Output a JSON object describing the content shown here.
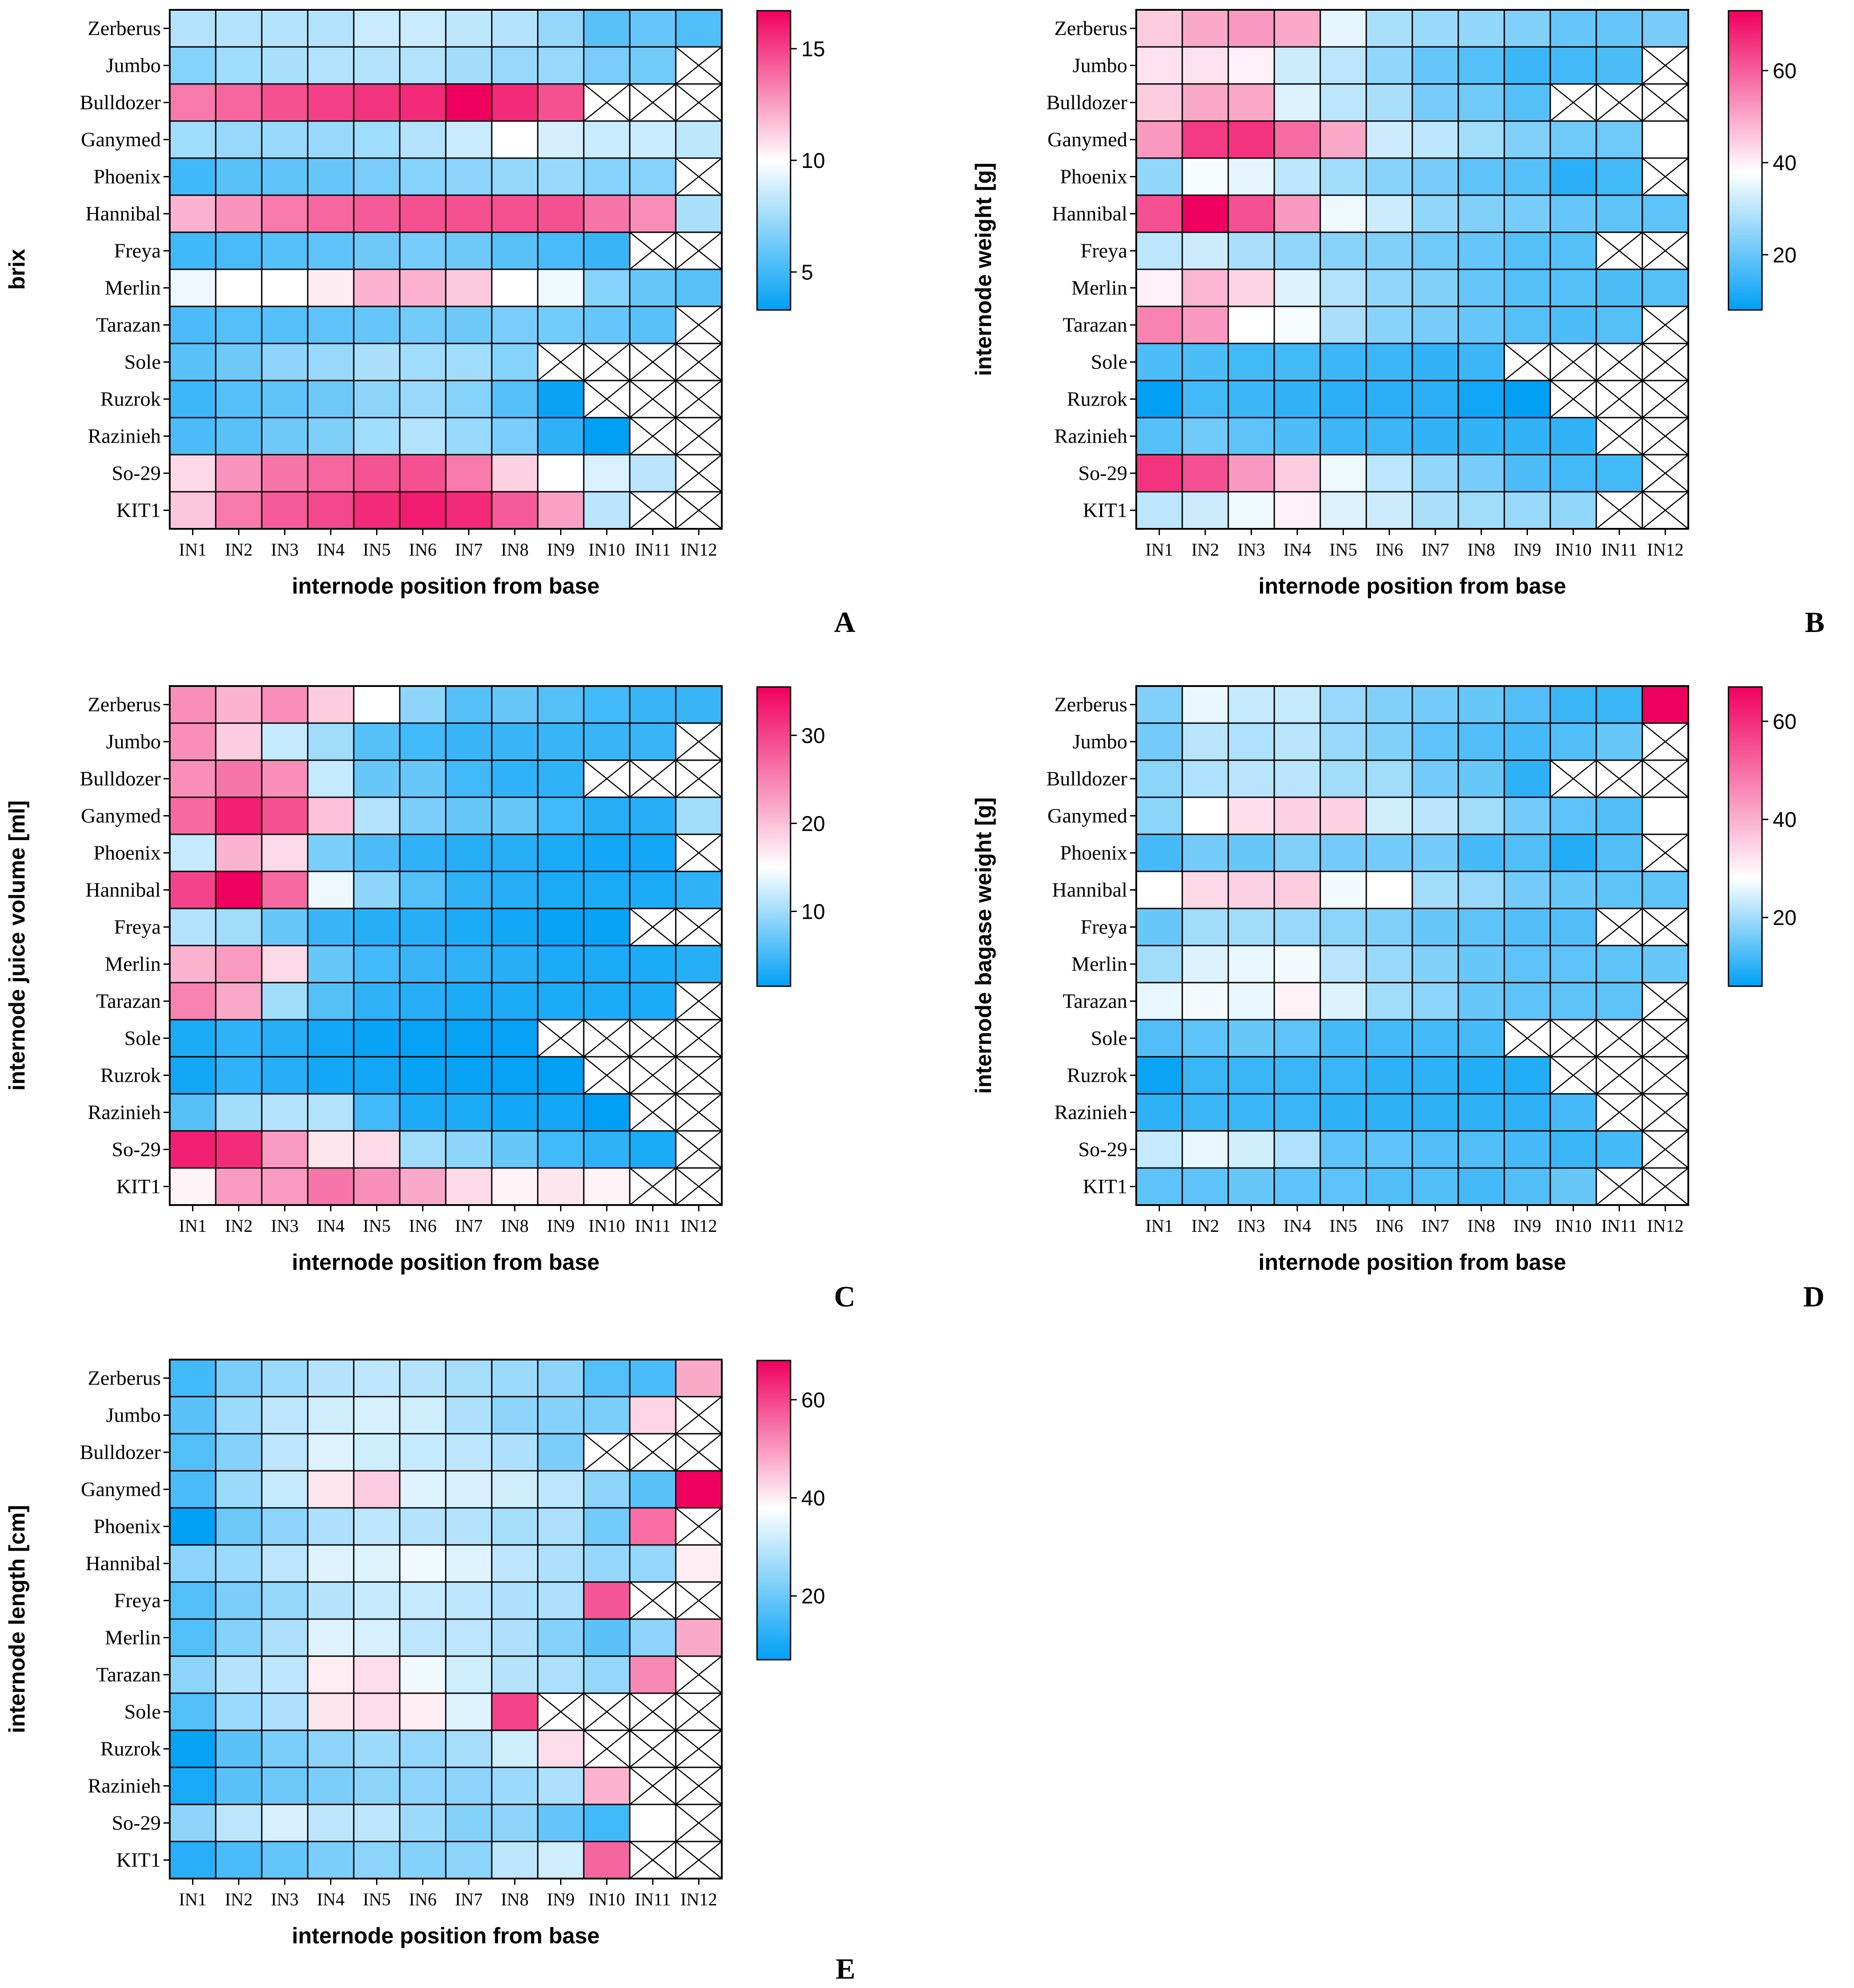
{
  "figure": {
    "rows": [
      "Zerberus",
      "Jumbo",
      "Bulldozer",
      "Ganymed",
      "Phoenix",
      "Hannibal",
      "Freya",
      "Merlin",
      "Tarazan",
      "Sole",
      "Ruzrok",
      "Razinieh",
      "So-29",
      "KIT1"
    ],
    "columns": [
      "IN1",
      "IN2",
      "IN3",
      "IN4",
      "IN5",
      "IN6",
      "IN7",
      "IN8",
      "IN9",
      "IN10",
      "IN11",
      "IN12"
    ],
    "colors": {
      "low": "#00a0f5",
      "mid": "#ffffff",
      "high": "#f0005e",
      "grid": "#000000",
      "missing_fill": "#ffffff"
    }
  },
  "chart_data": [
    {
      "type": "heatmap",
      "panel": "A",
      "title": "",
      "xlabel": "internode position from base",
      "ylabel": "brix",
      "colorbar": {
        "min": 3.3,
        "mid": 10,
        "max": 16.7,
        "ticks": [
          5,
          10,
          15
        ]
      },
      "values": [
        [
          8,
          8,
          8,
          8,
          8.6,
          8.6,
          8.3,
          8,
          7.2,
          5.6,
          6,
          5.4
        ],
        [
          6.8,
          7.5,
          7.8,
          8,
          8,
          8,
          7.6,
          7.3,
          7.3,
          6.5,
          6.3,
          null
        ],
        [
          13.5,
          14,
          14.6,
          15,
          15.3,
          15.6,
          16.7,
          15.6,
          14.6,
          null,
          null,
          null
        ],
        [
          7.5,
          7.3,
          7.3,
          7.3,
          7.5,
          8,
          8.6,
          10,
          8.9,
          8.6,
          8.6,
          8.3
        ],
        [
          5,
          5.6,
          5.8,
          6,
          6.5,
          6.8,
          7,
          7.2,
          7.3,
          6.8,
          6.8,
          null
        ],
        [
          12,
          12.8,
          13.5,
          14,
          14.3,
          14.6,
          14.6,
          14.6,
          14.6,
          13.6,
          13,
          7.8
        ],
        [
          5,
          5.2,
          5.5,
          5.8,
          6.2,
          6.4,
          6.2,
          5.6,
          5.2,
          4.8,
          null,
          null
        ],
        [
          9.5,
          10,
          10,
          10.5,
          12,
          12,
          11.4,
          10,
          9.6,
          6.8,
          6,
          5.6
        ],
        [
          5.3,
          5.5,
          5.5,
          5.8,
          6,
          6.3,
          6.2,
          6.5,
          6.3,
          6,
          5.6,
          null
        ],
        [
          5.6,
          6.2,
          7,
          7.3,
          7.8,
          7.5,
          7.5,
          6.8,
          null,
          null,
          null,
          null
        ],
        [
          4.9,
          5.5,
          5.8,
          6.2,
          7,
          7.3,
          6.8,
          5.5,
          3.6,
          null,
          null,
          null
        ],
        [
          5.3,
          5.6,
          6.2,
          6.6,
          7.5,
          8,
          7.3,
          6.5,
          4.5,
          3.3,
          null,
          null
        ],
        [
          11,
          12.8,
          13.6,
          14,
          14.5,
          14.6,
          13.5,
          11.2,
          10,
          9,
          8.2,
          null
        ],
        [
          11.5,
          13.5,
          14.3,
          14.8,
          15.6,
          16,
          15.6,
          14.3,
          12.5,
          8.2,
          null,
          null
        ]
      ]
    },
    {
      "type": "heatmap",
      "panel": "B",
      "title": "",
      "xlabel": "internode position from base",
      "ylabel": "internode weight [g]",
      "colorbar": {
        "min": 8,
        "mid": 38,
        "max": 73,
        "ticks": [
          20,
          40,
          60
        ]
      },
      "values": [
        [
          45,
          50,
          52,
          50,
          35,
          28,
          26,
          25,
          23,
          20,
          20,
          22
        ],
        [
          42,
          42,
          40,
          32,
          30,
          25,
          20,
          18,
          15,
          16,
          17,
          null
        ],
        [
          45,
          50,
          50,
          34,
          30,
          28,
          22,
          21,
          18,
          null,
          null,
          null
        ],
        [
          52,
          65,
          66,
          58,
          50,
          32,
          30,
          27,
          23,
          21,
          21,
          38
        ],
        [
          25,
          37,
          35,
          30,
          27,
          24,
          22,
          19,
          18,
          13,
          16,
          null
        ],
        [
          62,
          73,
          62,
          52,
          36,
          32,
          25,
          23,
          22,
          20,
          19,
          19
        ],
        [
          30,
          32,
          28,
          25,
          24,
          23,
          21,
          20,
          18,
          18,
          null,
          null
        ],
        [
          40,
          48,
          44,
          34,
          29,
          25,
          23,
          20,
          18,
          18,
          17,
          18
        ],
        [
          55,
          52,
          38,
          37,
          28,
          24,
          22,
          20,
          18,
          17,
          18,
          null
        ],
        [
          17,
          17,
          16,
          16,
          15,
          15,
          14,
          15,
          null,
          null,
          null,
          null
        ],
        [
          8,
          16,
          15,
          14,
          13,
          13,
          13,
          10,
          8,
          null,
          null,
          null
        ],
        [
          18,
          21,
          19,
          17,
          15,
          15,
          14,
          14,
          14,
          14,
          null,
          null
        ],
        [
          66,
          62,
          52,
          45,
          36,
          30,
          25,
          22,
          17,
          16,
          16,
          null
        ],
        [
          30,
          32,
          36,
          40,
          34,
          32,
          28,
          27,
          26,
          25,
          null,
          null
        ]
      ]
    },
    {
      "type": "heatmap",
      "panel": "C",
      "title": "",
      "xlabel": "internode position from base",
      "ylabel": "internode juice volume [ml]",
      "colorbar": {
        "min": 1.5,
        "mid": 15,
        "max": 35.5,
        "ticks": [
          10,
          20,
          30
        ]
      },
      "values": [
        [
          24,
          21,
          24,
          19,
          15,
          9,
          6,
          7,
          6,
          5,
          4.5,
          4.5
        ],
        [
          24,
          19,
          12,
          10,
          6,
          5,
          4.5,
          4.5,
          4.5,
          4.5,
          4.5,
          null
        ],
        [
          24,
          26,
          24,
          12,
          7,
          7,
          5,
          4,
          4,
          null,
          null,
          null
        ],
        [
          27,
          33,
          29,
          20,
          11,
          8,
          7,
          7,
          5,
          3.5,
          3.5,
          10
        ],
        [
          12,
          21,
          18,
          8,
          5.5,
          4,
          3.5,
          3.5,
          3,
          2.5,
          2.5,
          null
        ],
        [
          30,
          35.5,
          27,
          14,
          9,
          6,
          4,
          3.5,
          3,
          3,
          3,
          4
        ],
        [
          11,
          10,
          7,
          4.5,
          3.5,
          3.5,
          3,
          2.5,
          2,
          2,
          null,
          null
        ],
        [
          21,
          23,
          18,
          7,
          5,
          4.5,
          4,
          3.5,
          3,
          3,
          3,
          3.5
        ],
        [
          25,
          22,
          10,
          6,
          4,
          3.5,
          3,
          3,
          3,
          3,
          3,
          null
        ],
        [
          3,
          4,
          3.5,
          2.5,
          2,
          1.8,
          1.8,
          1.8,
          null,
          null,
          null,
          null
        ],
        [
          2.5,
          4,
          3.5,
          2.5,
          2.5,
          2,
          2,
          1.8,
          1.5,
          null,
          null,
          null
        ],
        [
          6,
          10,
          11,
          11,
          5,
          3,
          3,
          2.5,
          2.5,
          1.5,
          null,
          null
        ],
        [
          33,
          32,
          23,
          17,
          18,
          10,
          9,
          7,
          5,
          4,
          3,
          null
        ],
        [
          16,
          23,
          23,
          26,
          24,
          22,
          18,
          16,
          17,
          16,
          null,
          null
        ]
      ]
    },
    {
      "type": "heatmap",
      "panel": "D",
      "title": "",
      "xlabel": "internode position from base",
      "ylabel": "internode bagase weight [g]",
      "colorbar": {
        "min": 6,
        "mid": 28,
        "max": 67,
        "ticks": [
          20,
          40,
          60
        ]
      },
      "values": [
        [
          17,
          26,
          23,
          23,
          19,
          17,
          16,
          15,
          13,
          11,
          11,
          67
        ],
        [
          16,
          22,
          21,
          22,
          19,
          17,
          14,
          13,
          12,
          13,
          15,
          null
        ],
        [
          18,
          21,
          22,
          22,
          20,
          20,
          16,
          15,
          10,
          null,
          null,
          null
        ],
        [
          18,
          28,
          33,
          35,
          35,
          24,
          22,
          20,
          16,
          14,
          13,
          28
        ],
        [
          12,
          16,
          15,
          17,
          16,
          16,
          16,
          12,
          13,
          9,
          13,
          null
        ],
        [
          28,
          34,
          35,
          36,
          27,
          28,
          20,
          19,
          16,
          15,
          14,
          14
        ],
        [
          15,
          20,
          20,
          19,
          18,
          17,
          15,
          14,
          13,
          13,
          null,
          null
        ],
        [
          20,
          25,
          26,
          27,
          22,
          19,
          17,
          15,
          14,
          14,
          14,
          15
        ],
        [
          26,
          27,
          26,
          30,
          25,
          20,
          18,
          15,
          14,
          14,
          14,
          null
        ],
        [
          13,
          14,
          15,
          14,
          12,
          12,
          12,
          12,
          null,
          null,
          null,
          null
        ],
        [
          7,
          11,
          11,
          11,
          11,
          10,
          10,
          9,
          9,
          null,
          null,
          null
        ],
        [
          10,
          11,
          11,
          11,
          10,
          10,
          10,
          10,
          10,
          12,
          null,
          null
        ],
        [
          23,
          26,
          24,
          21,
          14,
          14,
          13,
          13,
          12,
          11,
          12,
          null
        ],
        [
          14,
          14,
          15,
          14,
          14,
          13,
          13,
          12,
          13,
          15,
          null,
          null
        ]
      ]
    },
    {
      "type": "heatmap",
      "panel": "E",
      "title": "",
      "xlabel": "internode position from base",
      "ylabel": "internode length [cm]",
      "colorbar": {
        "min": 7,
        "mid": 38,
        "max": 68,
        "ticks": [
          20,
          40,
          60
        ]
      },
      "values": [
        [
          15,
          22,
          26,
          29,
          30,
          29,
          27,
          26,
          24,
          17,
          16,
          48
        ],
        [
          18,
          26,
          30,
          32,
          33,
          32,
          28,
          24,
          23,
          22,
          43,
          null
        ],
        [
          17,
          23,
          30,
          34,
          32,
          31,
          30,
          28,
          22,
          null,
          null,
          null
        ],
        [
          16,
          26,
          31,
          41,
          44,
          34,
          33,
          32,
          30,
          24,
          18,
          68
        ],
        [
          7,
          20,
          24,
          28,
          30,
          29,
          29,
          27,
          28,
          21,
          55,
          null
        ],
        [
          24,
          26,
          30,
          34,
          34,
          36,
          34,
          30,
          28,
          25,
          25,
          40
        ],
        [
          17,
          22,
          25,
          29,
          31,
          31,
          30,
          28,
          28,
          58,
          null,
          null
        ],
        [
          17,
          23,
          28,
          34,
          33,
          30,
          30,
          28,
          23,
          18,
          24,
          48
        ],
        [
          24,
          29,
          30,
          40,
          42,
          36,
          32,
          29,
          28,
          25,
          52,
          null
        ],
        [
          17,
          26,
          28,
          41,
          42,
          40,
          34,
          60,
          null,
          null,
          null,
          null
        ],
        [
          8,
          18,
          22,
          24,
          26,
          25,
          27,
          32,
          42,
          null,
          null,
          null
        ],
        [
          10,
          18,
          20,
          22,
          24,
          24,
          24,
          26,
          28,
          47,
          null,
          null
        ],
        [
          24,
          30,
          33,
          30,
          30,
          26,
          23,
          24,
          19,
          15,
          38,
          null
        ],
        [
          12,
          16,
          19,
          22,
          24,
          23,
          24,
          30,
          32,
          56,
          null,
          null
        ]
      ]
    }
  ],
  "panel_letters": [
    "A",
    "B",
    "C",
    "D",
    "E"
  ]
}
